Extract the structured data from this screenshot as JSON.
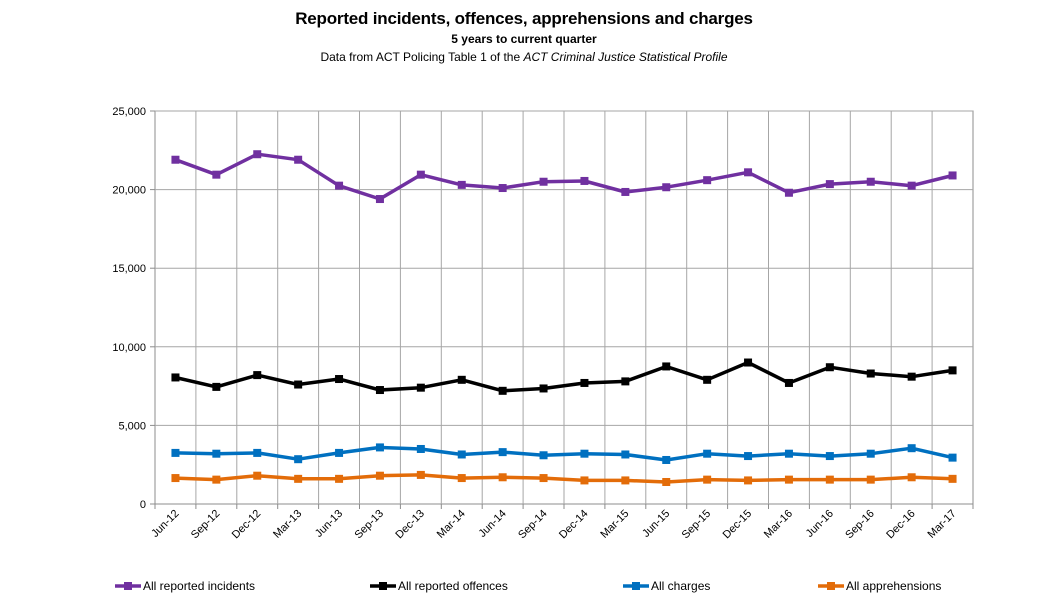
{
  "chart_data": {
    "type": "line",
    "title": "Reported incidents, offences, apprehensions and charges",
    "subtitle": "5 years to current quarter",
    "source_prefix": "Data from ACT Policing Table 1 of the ",
    "source_italic": "ACT Criminal Justice Statistical Profile",
    "xlabel": "",
    "ylabel": "",
    "ylim": [
      0,
      25000
    ],
    "yticks": [
      "0",
      "5,000",
      "10,000",
      "15,000",
      "20,000",
      "25,000"
    ],
    "grid": true,
    "legend_position": "bottom",
    "categories": [
      "Jun-12",
      "Sep-12",
      "Dec-12",
      "Mar-13",
      "Jun-13",
      "Sep-13",
      "Dec-13",
      "Mar-14",
      "Jun-14",
      "Sep-14",
      "Dec-14",
      "Mar-15",
      "Jun-15",
      "Sep-15",
      "Dec-15",
      "Mar-16",
      "Jun-16",
      "Sep-16",
      "Dec-16",
      "Mar-17"
    ],
    "series": [
      {
        "name": "All reported incidents",
        "color": "#7030A0",
        "values": [
          21900,
          20950,
          22250,
          21900,
          20250,
          19400,
          20950,
          20300,
          20100,
          20500,
          20550,
          19850,
          20150,
          20600,
          21100,
          19800,
          20350,
          20500,
          20250,
          20900
        ]
      },
      {
        "name": "All reported offences",
        "color": "#000000",
        "values": [
          8050,
          7450,
          8200,
          7600,
          7950,
          7250,
          7400,
          7900,
          7200,
          7350,
          7700,
          7800,
          8750,
          7900,
          9000,
          7700,
          8700,
          8300,
          8100,
          8500
        ]
      },
      {
        "name": "All charges",
        "color": "#0070C0",
        "values": [
          3250,
          3200,
          3250,
          2850,
          3250,
          3600,
          3500,
          3150,
          3300,
          3100,
          3200,
          3150,
          2800,
          3200,
          3050,
          3200,
          3050,
          3200,
          3550,
          2950
        ]
      },
      {
        "name": "All apprehensions",
        "color": "#E36C09",
        "values": [
          1650,
          1550,
          1800,
          1600,
          1600,
          1800,
          1850,
          1650,
          1700,
          1650,
          1500,
          1500,
          1400,
          1550,
          1500,
          1550,
          1550,
          1550,
          1700,
          1600
        ]
      }
    ]
  }
}
